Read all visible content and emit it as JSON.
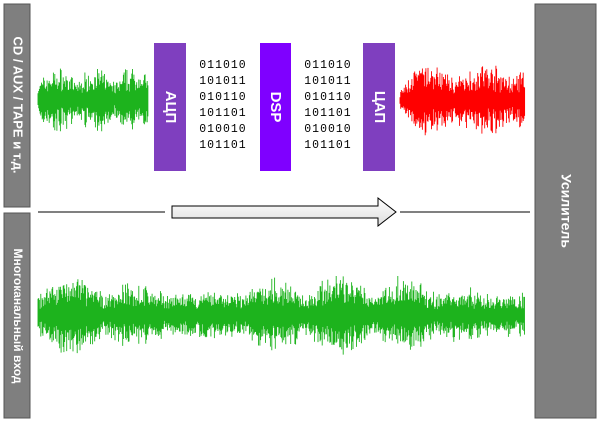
{
  "inputs": {
    "top": "CD / AUX / TAPE и т.д.",
    "bottom": "Многоканальный вход"
  },
  "blocks": {
    "adc": "АЦП",
    "dsp": "DSP",
    "dac": "ЦАП"
  },
  "binary": {
    "left": [
      "011010",
      "101011",
      "010110",
      "101101",
      "010010",
      "101101"
    ],
    "right": [
      "011010",
      "101011",
      "010110",
      "101101",
      "010010",
      "101101"
    ]
  },
  "output": "Усилитель"
}
